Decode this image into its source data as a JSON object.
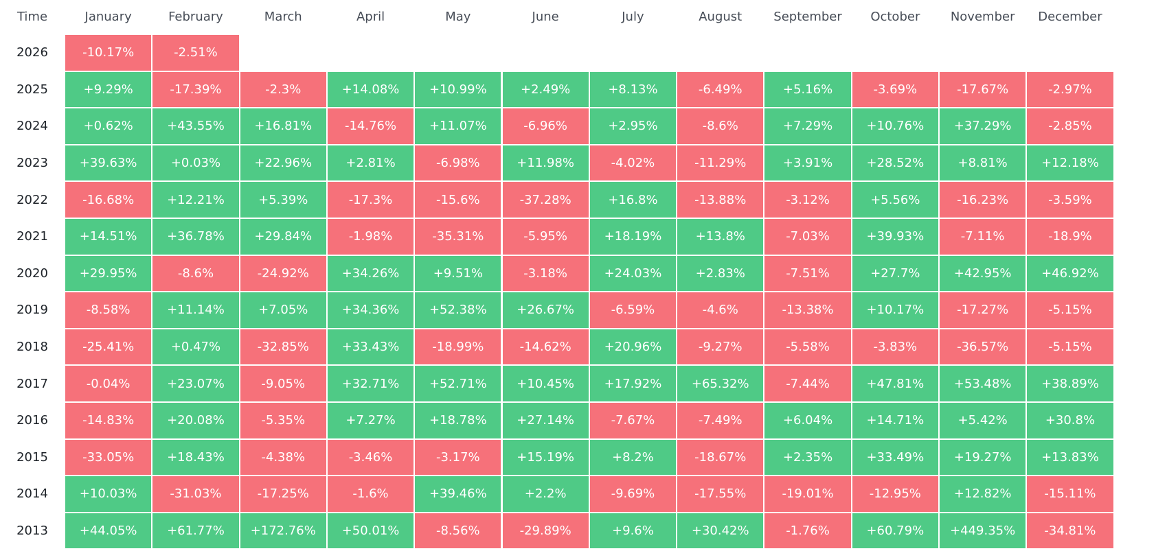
{
  "table": {
    "header": [
      "Time",
      "January",
      "February",
      "March",
      "April",
      "May",
      "June",
      "July",
      "August",
      "September",
      "October",
      "November",
      "December"
    ],
    "rows": [
      [
        "2026",
        "-10.17%",
        "-2.51%"
      ],
      [
        "2025",
        "+9.29%",
        "-17.39%",
        "-2.3%",
        "+14.08%",
        "+10.99%",
        "+2.49%",
        "+8.13%",
        "-6.49%",
        "+5.16%",
        "-3.69%",
        "-17.67%",
        "-2.97%"
      ],
      [
        "2024",
        "+0.62%",
        "+43.55%",
        "+16.81%",
        "-14.76%",
        "+11.07%",
        "-6.96%",
        "+2.95%",
        "-8.6%",
        "+7.29%",
        "+10.76%",
        "+37.29%",
        "-2.85%"
      ],
      [
        "2023",
        "+39.63%",
        "+0.03%",
        "+22.96%",
        "+2.81%",
        "-6.98%",
        "+11.98%",
        "-4.02%",
        "-11.29%",
        "+3.91%",
        "+28.52%",
        "+8.81%",
        "+12.18%"
      ],
      [
        "2022",
        "-16.68%",
        "+12.21%",
        "+5.39%",
        "-17.3%",
        "-15.6%",
        "-37.28%",
        "+16.8%",
        "-13.88%",
        "-3.12%",
        "+5.56%",
        "-16.23%",
        "-3.59%"
      ],
      [
        "2021",
        "+14.51%",
        "+36.78%",
        "+29.84%",
        "-1.98%",
        "-35.31%",
        "-5.95%",
        "+18.19%",
        "+13.8%",
        "-7.03%",
        "+39.93%",
        "-7.11%",
        "-18.9%"
      ],
      [
        "2020",
        "+29.95%",
        "-8.6%",
        "-24.92%",
        "+34.26%",
        "+9.51%",
        "-3.18%",
        "+24.03%",
        "+2.83%",
        "-7.51%",
        "+27.7%",
        "+42.95%",
        "+46.92%"
      ],
      [
        "2019",
        "-8.58%",
        "+11.14%",
        "+7.05%",
        "+34.36%",
        "+52.38%",
        "+26.67%",
        "-6.59%",
        "-4.6%",
        "-13.38%",
        "+10.17%",
        "-17.27%",
        "-5.15%"
      ],
      [
        "2018",
        "-25.41%",
        "+0.47%",
        "-32.85%",
        "+33.43%",
        "-18.99%",
        "-14.62%",
        "+20.96%",
        "-9.27%",
        "-5.58%",
        "-3.83%",
        "-36.57%",
        "-5.15%"
      ],
      [
        "2017",
        "-0.04%",
        "+23.07%",
        "-9.05%",
        "+32.71%",
        "+52.71%",
        "+10.45%",
        "+17.92%",
        "+65.32%",
        "-7.44%",
        "+47.81%",
        "+53.48%",
        "+38.89%"
      ],
      [
        "2016",
        "-14.83%",
        "+20.08%",
        "-5.35%",
        "+7.27%",
        "+18.78%",
        "+27.14%",
        "-7.67%",
        "-7.49%",
        "+6.04%",
        "+14.71%",
        "+5.42%",
        "+30.8%"
      ],
      [
        "2015",
        "-33.05%",
        "+18.43%",
        "-4.38%",
        "-3.46%",
        "-3.17%",
        "+15.19%",
        "+8.2%",
        "-18.67%",
        "+2.35%",
        "+33.49%",
        "+19.27%",
        "+13.83%"
      ],
      [
        "2014",
        "+10.03%",
        "-31.03%",
        "-17.25%",
        "-1.6%",
        "+39.46%",
        "+2.2%",
        "-9.69%",
        "-17.55%",
        "-19.01%",
        "-12.95%",
        "+12.82%",
        "-15.11%"
      ],
      [
        "2013",
        "+44.05%",
        "+61.77%",
        "+172.76%",
        "+50.01%",
        "-8.56%",
        "-29.89%",
        "+9.6%",
        "+30.42%",
        "-1.76%",
        "+60.79%",
        "+449.35%",
        "-34.81%"
      ]
    ]
  }
}
